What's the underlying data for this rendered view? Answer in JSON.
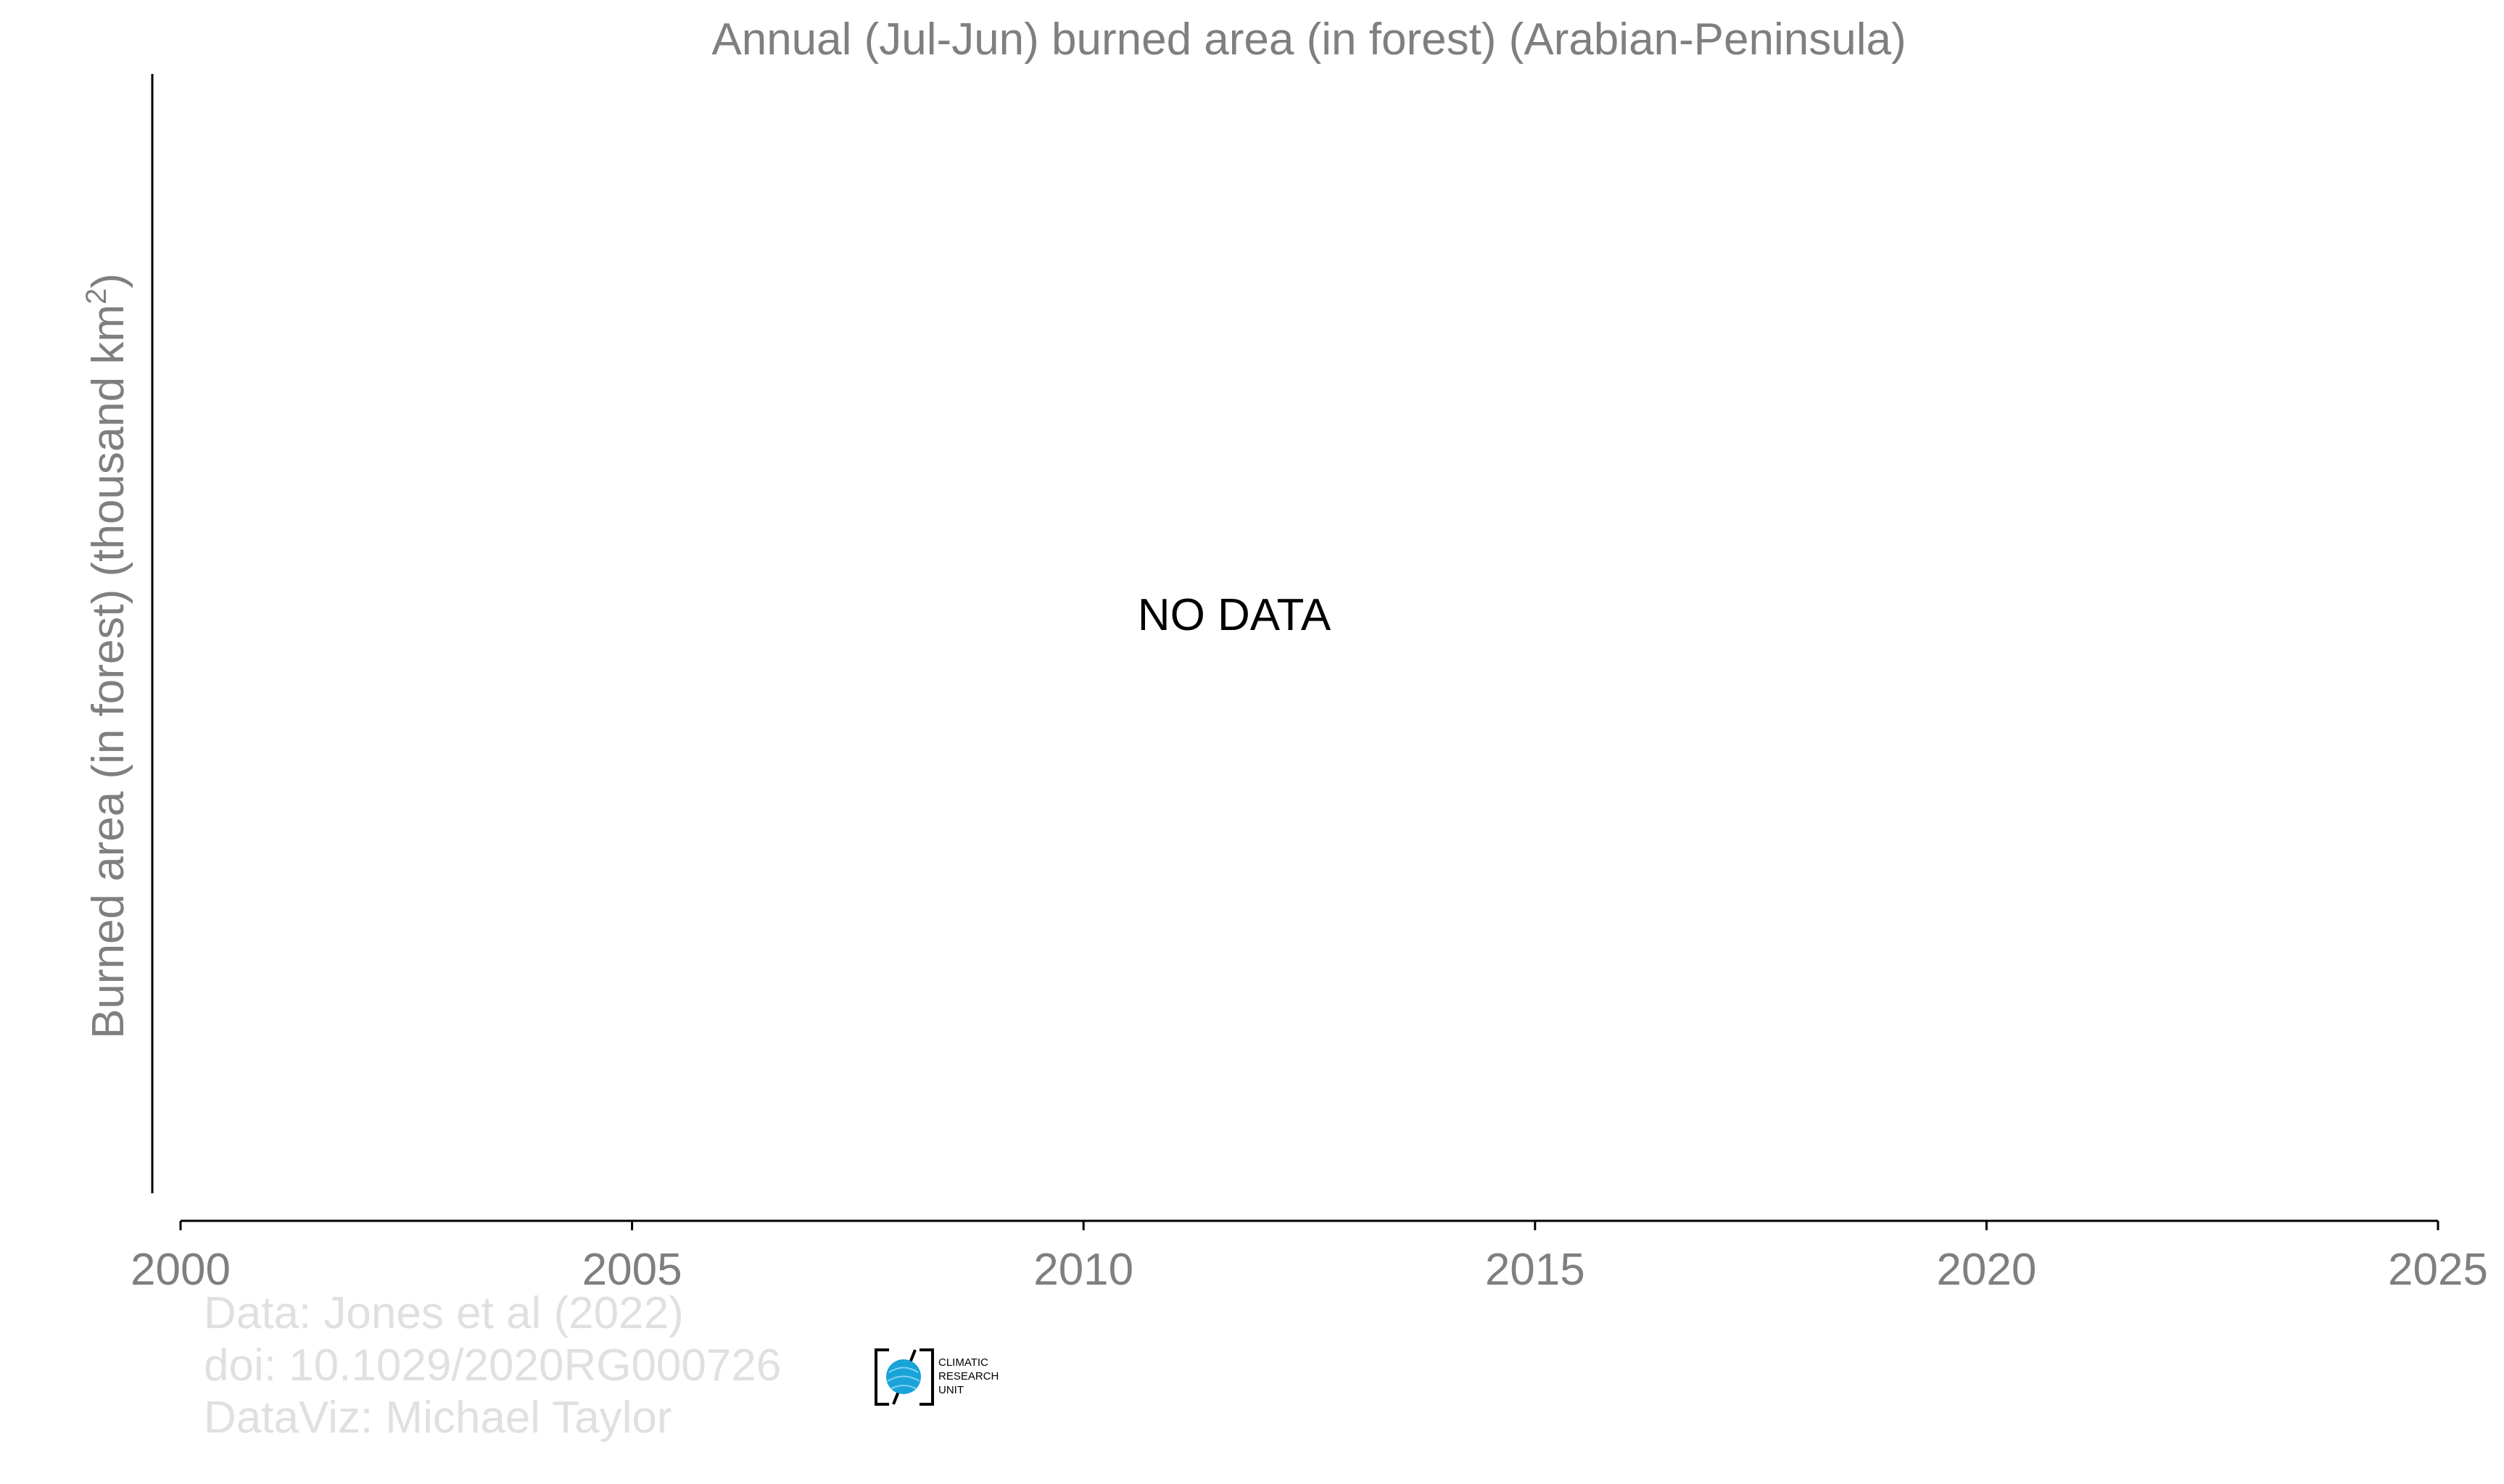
{
  "chart_data": {
    "type": "line",
    "title": "Annual (Jul-Jun) burned area (in forest) (Arabian-Peninsula)",
    "ylabel_main": "Burned area (in forest) (thousand km",
    "ylabel_sup": "2",
    "ylabel_close": ")",
    "xlabel": "",
    "xlim": [
      2000,
      2025
    ],
    "x_ticks": [
      2000,
      2005,
      2010,
      2015,
      2020,
      2025
    ],
    "x_tick_labels": [
      "2000",
      "2005",
      "2010",
      "2015",
      "2020",
      "2025"
    ],
    "series": [],
    "grid": false,
    "annotation": "NO DATA"
  },
  "credits": {
    "line1": "Data: Jones et al (2022)",
    "line2": "doi: 10.1029/2020RG000726",
    "line3": "DataViz: Michael Taylor"
  },
  "logo": {
    "line1": "CLIMATIC",
    "line2": "RESEARCH",
    "line3": "UNIT",
    "globe_color": "#1aa3d9"
  }
}
